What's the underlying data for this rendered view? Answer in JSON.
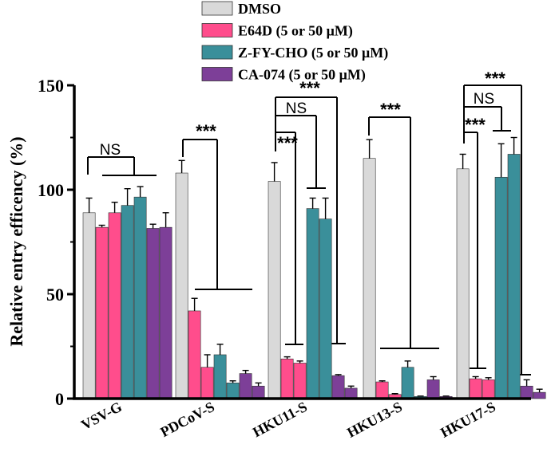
{
  "chart_data": {
    "type": "bar",
    "title": "",
    "xlabel": "",
    "ylabel": "Relative entry efficency (%)",
    "ylim": [
      0,
      150
    ],
    "yticks": [
      0,
      50,
      100,
      150
    ],
    "grid": false,
    "legend_position": "top-center",
    "categories": [
      "VSV-G",
      "PDCoV-S",
      "HKU11-S",
      "HKU13-S",
      "HKU17-S"
    ],
    "series": [
      {
        "name": "DMSO",
        "color": "#d9d9d9",
        "values": [
          [
            89,
            7
          ],
          [
            108,
            6
          ],
          [
            104,
            9
          ],
          [
            115,
            9
          ],
          [
            110,
            7
          ]
        ]
      },
      {
        "name": "E64D (5 or 50 μM)",
        "color": "#ff4d8c",
        "values": [
          [
            82,
            1
          ],
          [
            42,
            6
          ],
          [
            19,
            1
          ],
          [
            8,
            0.5
          ],
          [
            9.5,
            1
          ]
        ]
      },
      {
        "name": "E64D (5 or 50 μM)",
        "color": "#ff4d8c",
        "legend": false,
        "values": [
          [
            89,
            5
          ],
          [
            15,
            6
          ],
          [
            17,
            1
          ],
          [
            2,
            0.4
          ],
          [
            9,
            1
          ]
        ]
      },
      {
        "name": "Z-FY-CHO (5 or 50 μM)",
        "color": "#3a8f9a",
        "values": [
          [
            92.5,
            8
          ],
          [
            21,
            5
          ],
          [
            91,
            5
          ],
          [
            15,
            3
          ],
          [
            106,
            16
          ]
        ]
      },
      {
        "name": "Z-FY-CHO (5 or 50 μM)",
        "color": "#3a8f9a",
        "legend": false,
        "values": [
          [
            96.5,
            5
          ],
          [
            7.5,
            1
          ],
          [
            86,
            10
          ],
          [
            1,
            0.2
          ],
          [
            117,
            8
          ]
        ]
      },
      {
        "name": "CA-074 (5 or 50 μM)",
        "color": "#7d3f98",
        "values": [
          [
            81.5,
            2
          ],
          [
            12,
            1.5
          ],
          [
            11,
            0.5
          ],
          [
            9,
            1.5
          ],
          [
            6,
            3
          ]
        ]
      },
      {
        "name": "CA-074 (5 or 50 μM)",
        "color": "#7d3f98",
        "legend": false,
        "values": [
          [
            82,
            7
          ],
          [
            6,
            1.5
          ],
          [
            5,
            1
          ],
          [
            1,
            0.2
          ],
          [
            3,
            1.5
          ]
        ]
      }
    ],
    "annotations": [
      {
        "group": "VSV-G",
        "label": "NS",
        "from": "DMSO",
        "to": "treatments"
      },
      {
        "group": "PDCoV-S",
        "label": "***",
        "from": "DMSO",
        "to": "treatments"
      },
      {
        "group": "HKU11-S",
        "label": "***",
        "from": "DMSO",
        "to": "E64D"
      },
      {
        "group": "HKU11-S",
        "label": "NS",
        "from": "DMSO",
        "to": "Z-FY-CHO"
      },
      {
        "group": "HKU11-S",
        "label": "***",
        "from": "DMSO",
        "to": "CA-074"
      },
      {
        "group": "HKU13-S",
        "label": "***",
        "from": "DMSO",
        "to": "treatments"
      },
      {
        "group": "HKU17-S",
        "label": "***",
        "from": "DMSO",
        "to": "E64D"
      },
      {
        "group": "HKU17-S",
        "label": "NS",
        "from": "DMSO",
        "to": "Z-FY-CHO"
      },
      {
        "group": "HKU17-S",
        "label": "***",
        "from": "DMSO",
        "to": "CA-074"
      }
    ]
  }
}
